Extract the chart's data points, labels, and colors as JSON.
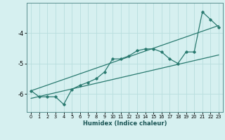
{
  "xlabel": "Humidex (Indice chaleur)",
  "ylabel": "",
  "background_color": "#d6f0f0",
  "grid_color": "#b8dede",
  "line_color": "#2a7a70",
  "xlim": [
    -0.5,
    23.5
  ],
  "ylim": [
    -6.6,
    -3.0
  ],
  "yticks": [
    -6,
    -5,
    -4
  ],
  "xticks": [
    0,
    1,
    2,
    3,
    4,
    5,
    6,
    7,
    8,
    9,
    10,
    11,
    12,
    13,
    14,
    15,
    16,
    17,
    18,
    19,
    20,
    21,
    22,
    23
  ],
  "series1_x": [
    0,
    1,
    2,
    3,
    4,
    5,
    6,
    7,
    8,
    9,
    10,
    11,
    12,
    13,
    14,
    15,
    16,
    17,
    18,
    19,
    20,
    21,
    22,
    23
  ],
  "series1_y": [
    -5.9,
    -6.1,
    -6.1,
    -6.1,
    -6.35,
    -5.85,
    -5.72,
    -5.62,
    -5.5,
    -5.28,
    -4.85,
    -4.85,
    -4.75,
    -4.58,
    -4.52,
    -4.52,
    -4.62,
    -4.85,
    -5.0,
    -4.62,
    -4.62,
    -3.3,
    -3.55,
    -3.8
  ],
  "series2_x": [
    0,
    23
  ],
  "series2_y": [
    -5.9,
    -3.75
  ],
  "series3_x": [
    0,
    23
  ],
  "series3_y": [
    -6.15,
    -4.72
  ]
}
